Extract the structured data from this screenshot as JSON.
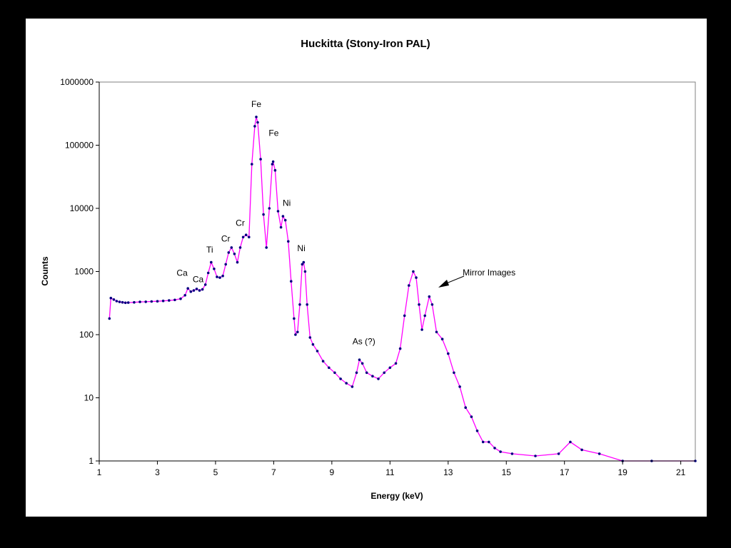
{
  "chart_data": {
    "type": "line",
    "title": "Huckitta (Stony-Iron PAL)",
    "xlabel": "Energy (keV)",
    "ylabel": "Counts",
    "xlim": [
      1,
      21.5
    ],
    "ylim": [
      1,
      1000000
    ],
    "y_scale": "log",
    "grid": false,
    "legend": "none",
    "x_ticks": [
      "1",
      "3",
      "5",
      "7",
      "9",
      "11",
      "13",
      "15",
      "17",
      "19",
      "21"
    ],
    "y_ticks": [
      "1",
      "10",
      "100",
      "1000",
      "10000",
      "100000",
      "1000000"
    ],
    "x_tick_values": [
      1,
      3,
      5,
      7,
      9,
      11,
      13,
      15,
      17,
      19,
      21
    ],
    "y_tick_values": [
      1,
      10,
      100,
      1000,
      10000,
      100000,
      1000000
    ],
    "colors": {
      "line": "#ff00ff",
      "marker": "#00007f",
      "axis": "#000000"
    },
    "series": [
      {
        "points": [
          [
            1.35,
            180
          ],
          [
            1.4,
            380
          ],
          [
            1.5,
            360
          ],
          [
            1.6,
            340
          ],
          [
            1.7,
            330
          ],
          [
            1.8,
            325
          ],
          [
            1.9,
            320
          ],
          [
            2.0,
            322
          ],
          [
            2.2,
            325
          ],
          [
            2.4,
            330
          ],
          [
            2.6,
            332
          ],
          [
            2.8,
            335
          ],
          [
            3.0,
            338
          ],
          [
            3.2,
            342
          ],
          [
            3.4,
            348
          ],
          [
            3.6,
            355
          ],
          [
            3.8,
            370
          ],
          [
            3.95,
            420
          ],
          [
            4.05,
            540
          ],
          [
            4.15,
            480
          ],
          [
            4.25,
            500
          ],
          [
            4.35,
            530
          ],
          [
            4.45,
            500
          ],
          [
            4.55,
            520
          ],
          [
            4.65,
            620
          ],
          [
            4.75,
            950
          ],
          [
            4.85,
            1400
          ],
          [
            4.95,
            1100
          ],
          [
            5.05,
            820
          ],
          [
            5.15,
            800
          ],
          [
            5.25,
            850
          ],
          [
            5.35,
            1300
          ],
          [
            5.45,
            2000
          ],
          [
            5.55,
            2400
          ],
          [
            5.65,
            1900
          ],
          [
            5.75,
            1400
          ],
          [
            5.85,
            2400
          ],
          [
            5.95,
            3500
          ],
          [
            6.05,
            3800
          ],
          [
            6.15,
            3500
          ],
          [
            6.25,
            50000
          ],
          [
            6.35,
            200000
          ],
          [
            6.4,
            280000
          ],
          [
            6.45,
            230000
          ],
          [
            6.55,
            60000
          ],
          [
            6.65,
            8000
          ],
          [
            6.75,
            2400
          ],
          [
            6.85,
            10000
          ],
          [
            6.95,
            50000
          ],
          [
            6.98,
            55000
          ],
          [
            7.05,
            40000
          ],
          [
            7.15,
            9000
          ],
          [
            7.25,
            5000
          ],
          [
            7.32,
            7500
          ],
          [
            7.4,
            6500
          ],
          [
            7.5,
            3000
          ],
          [
            7.6,
            700
          ],
          [
            7.7,
            180
          ],
          [
            7.75,
            100
          ],
          [
            7.82,
            110
          ],
          [
            7.9,
            300
          ],
          [
            7.98,
            1300
          ],
          [
            8.03,
            1400
          ],
          [
            8.08,
            1000
          ],
          [
            8.15,
            300
          ],
          [
            8.25,
            90
          ],
          [
            8.35,
            70
          ],
          [
            8.5,
            55
          ],
          [
            8.7,
            38
          ],
          [
            8.9,
            30
          ],
          [
            9.1,
            25
          ],
          [
            9.3,
            20
          ],
          [
            9.5,
            17
          ],
          [
            9.7,
            15
          ],
          [
            9.85,
            25
          ],
          [
            9.95,
            40
          ],
          [
            10.05,
            35
          ],
          [
            10.2,
            25
          ],
          [
            10.4,
            22
          ],
          [
            10.6,
            20
          ],
          [
            10.8,
            25
          ],
          [
            11.0,
            30
          ],
          [
            11.2,
            35
          ],
          [
            11.35,
            60
          ],
          [
            11.5,
            200
          ],
          [
            11.65,
            600
          ],
          [
            11.8,
            1000
          ],
          [
            11.9,
            800
          ],
          [
            12.0,
            300
          ],
          [
            12.1,
            120
          ],
          [
            12.2,
            200
          ],
          [
            12.35,
            400
          ],
          [
            12.45,
            300
          ],
          [
            12.6,
            110
          ],
          [
            12.8,
            85
          ],
          [
            13.0,
            50
          ],
          [
            13.2,
            25
          ],
          [
            13.4,
            15
          ],
          [
            13.6,
            7
          ],
          [
            13.8,
            5
          ],
          [
            14.0,
            3
          ],
          [
            14.2,
            2
          ],
          [
            14.4,
            2
          ],
          [
            14.6,
            1.6
          ],
          [
            14.8,
            1.4
          ],
          [
            15.2,
            1.3
          ],
          [
            16.0,
            1.2
          ],
          [
            16.8,
            1.3
          ],
          [
            17.2,
            2
          ],
          [
            17.6,
            1.5
          ],
          [
            18.2,
            1.3
          ],
          [
            19.0,
            1
          ],
          [
            20.0,
            1
          ],
          [
            21.5,
            1
          ]
        ]
      }
    ],
    "annotations": [
      {
        "text": "Fe",
        "x": 6.4,
        "y": 400000
      },
      {
        "text": "Fe",
        "x": 7.0,
        "y": 140000
      },
      {
        "text": "Ni",
        "x": 7.45,
        "y": 11000
      },
      {
        "text": "Cr",
        "x": 5.85,
        "y": 5300
      },
      {
        "text": "Cr",
        "x": 5.35,
        "y": 3000
      },
      {
        "text": "Ti",
        "x": 4.8,
        "y": 2000
      },
      {
        "text": "Ni",
        "x": 7.95,
        "y": 2100
      },
      {
        "text": "Ca",
        "x": 3.85,
        "y": 850
      },
      {
        "text": "Ca",
        "x": 4.4,
        "y": 680
      },
      {
        "text": "As (?)",
        "x": 10.1,
        "y": 70
      },
      {
        "text": "Mirror Images",
        "x": 13.5,
        "y": 870
      }
    ]
  }
}
